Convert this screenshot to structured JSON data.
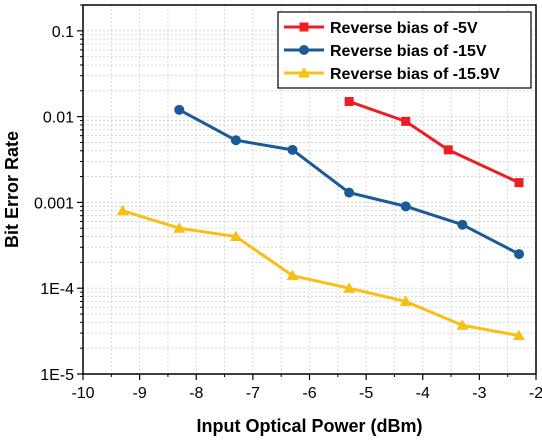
{
  "chart_data": {
    "type": "line",
    "xlabel": "Input Optical Power (dBm)",
    "ylabel": "Bit Error Rate",
    "xlim": [
      -10,
      -2
    ],
    "ylim": [
      1e-05,
      0.2
    ],
    "y_scale": "log",
    "grid": true,
    "legend_position": "top-right",
    "x_ticks": [
      -10,
      -9,
      -8,
      -7,
      -6,
      -5,
      -4,
      -3,
      -2
    ],
    "x_tick_labels": [
      "-10",
      "-9",
      "-8",
      "-7",
      "-6",
      "-5",
      "-4",
      "-3",
      "-2"
    ],
    "y_ticks": [
      0.1,
      0.01,
      0.001,
      0.0001,
      1e-05
    ],
    "y_tick_labels": [
      "0.1",
      "0.01",
      "0.001",
      "1E-4",
      "1E-5"
    ],
    "series": [
      {
        "name": "Reverse bias of -5V",
        "color": "#ee1c25",
        "marker": "square",
        "x": [
          -5.3,
          -4.3,
          -3.55,
          -2.3
        ],
        "y": [
          0.015,
          0.0088,
          0.0041,
          0.0017
        ]
      },
      {
        "name": "Reverse bias of -15V",
        "color": "#1a5a96",
        "marker": "circle",
        "x": [
          -8.3,
          -7.3,
          -6.3,
          -5.3,
          -4.3,
          -3.3,
          -2.3
        ],
        "y": [
          0.012,
          0.0053,
          0.0041,
          0.0013,
          0.0009,
          0.00055,
          0.00025
        ]
      },
      {
        "name": "Reverse bias of -15.9V",
        "color": "#f9bf16",
        "marker": "triangle",
        "x": [
          -9.3,
          -8.3,
          -7.3,
          -6.3,
          -5.3,
          -4.3,
          -3.3,
          -2.3
        ],
        "y": [
          0.0008,
          0.0005,
          0.0004,
          0.00014,
          0.0001,
          7e-05,
          3.7e-05,
          2.8e-05
        ]
      }
    ]
  }
}
